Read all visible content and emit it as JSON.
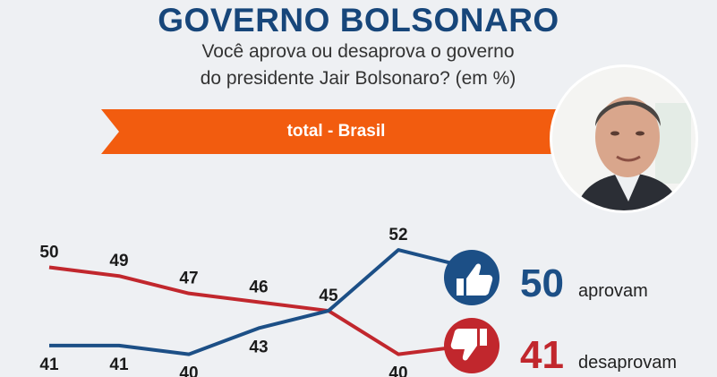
{
  "header": {
    "title": "GOVERNO BOLSONARO",
    "question_line1": "Você aprova ou desaprova o governo",
    "question_line2": "do presidente Jair Bolsonaro?  (em %)"
  },
  "banner": {
    "label": "total - Brasil"
  },
  "colors": {
    "title": "#17467a",
    "banner": "#f25c0f",
    "approve": "#1c4f86",
    "disapprove": "#c1272d"
  },
  "icons": {
    "approve": "thumbs-up-icon",
    "disapprove": "thumbs-down-icon"
  },
  "chart_data": {
    "type": "line",
    "x": [
      1,
      2,
      3,
      4,
      5,
      6,
      7
    ],
    "series": [
      {
        "name": "aprovam",
        "values": [
          41,
          41,
          40,
          43,
          45,
          52,
          50
        ],
        "color": "#1c4f86"
      },
      {
        "name": "desaprovam",
        "values": [
          50,
          49,
          47,
          46,
          45,
          40,
          41
        ],
        "color": "#c1272d"
      }
    ],
    "point_labels": {
      "aprovam": [
        "41",
        "41",
        "40",
        "43",
        "45",
        "52",
        ""
      ],
      "desaprovam": [
        "50",
        "49",
        "47",
        "46",
        "",
        "40",
        ""
      ]
    },
    "ylim": [
      38,
      55
    ],
    "title": "",
    "xlabel": "",
    "ylabel": "",
    "grid": false
  },
  "summary": {
    "approve_value": "50",
    "approve_label": "aprovam",
    "disapprove_value": "41",
    "disapprove_label": "desaprovam"
  }
}
